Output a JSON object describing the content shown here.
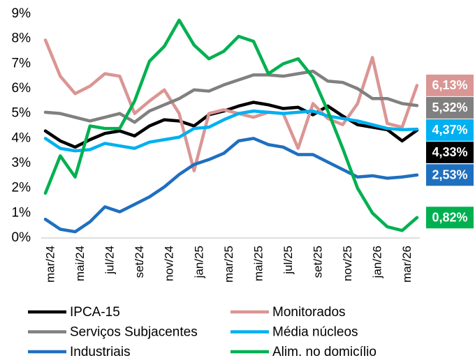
{
  "chart_data": {
    "type": "line",
    "categories": [
      "mar/24",
      null,
      "mai/24",
      null,
      "jul/24",
      null,
      "set/24",
      null,
      "nov/24",
      null,
      "jan/25",
      null,
      "mar/25",
      null,
      "mai/25",
      null,
      "jul/25",
      null,
      "set/25",
      null,
      "nov/25",
      null,
      "jan/26",
      null,
      "mar/26",
      null
    ],
    "series": [
      {
        "name": "IPCA-15",
        "color": "#000000",
        "end_label": "4,33%",
        "values": [
          4.3,
          3.9,
          3.65,
          3.95,
          4.2,
          4.3,
          4.1,
          4.5,
          4.75,
          4.7,
          4.5,
          4.95,
          5.1,
          5.3,
          5.45,
          5.35,
          5.2,
          5.25,
          4.95,
          5.3,
          4.9,
          4.55,
          4.45,
          4.35,
          3.9,
          4.33
        ]
      },
      {
        "name": "Monitorados",
        "color": "#da9694",
        "end_label": "6,13%",
        "values": [
          7.95,
          6.5,
          5.8,
          6.1,
          6.6,
          6.5,
          5.0,
          5.5,
          5.95,
          5.0,
          2.7,
          5.0,
          5.15,
          5.0,
          4.85,
          5.05,
          5.0,
          3.6,
          5.4,
          4.8,
          4.55,
          5.4,
          7.25,
          4.6,
          4.45,
          6.13
        ]
      },
      {
        "name": "Serviços Subjacentes",
        "color": "#808080",
        "end_label": "5,32%",
        "values": [
          5.05,
          5.0,
          4.85,
          4.7,
          4.85,
          5.0,
          4.65,
          5.1,
          5.35,
          5.6,
          5.95,
          5.9,
          6.15,
          6.35,
          6.55,
          6.55,
          6.5,
          6.6,
          6.7,
          6.3,
          6.25,
          6.0,
          5.6,
          5.6,
          5.4,
          5.32
        ]
      },
      {
        "name": "Média núcleos",
        "color": "#00b0f0",
        "end_label": "4,37%",
        "values": [
          4.0,
          3.6,
          3.5,
          3.55,
          3.8,
          3.7,
          3.6,
          3.85,
          3.95,
          4.05,
          4.4,
          4.45,
          4.75,
          5.0,
          5.1,
          5.05,
          5.0,
          5.05,
          5.1,
          4.9,
          4.8,
          4.7,
          4.55,
          4.4,
          4.35,
          4.37
        ]
      },
      {
        "name": "Industriais",
        "color": "#1f6fbf",
        "end_label": "2,53%",
        "values": [
          0.75,
          0.35,
          0.25,
          0.65,
          1.25,
          1.05,
          1.35,
          1.65,
          2.05,
          2.55,
          2.95,
          3.15,
          3.4,
          3.9,
          4.0,
          3.75,
          3.65,
          3.35,
          3.35,
          3.05,
          2.75,
          2.45,
          2.5,
          2.4,
          2.45,
          2.53
        ]
      },
      {
        "name": "Alim. no domicílio",
        "color": "#00b050",
        "end_label": "0,82%",
        "values": [
          1.8,
          3.3,
          2.45,
          4.5,
          4.4,
          4.4,
          5.5,
          7.1,
          7.7,
          8.75,
          7.75,
          7.2,
          7.5,
          8.1,
          7.9,
          6.6,
          7.0,
          7.2,
          6.45,
          5.1,
          3.6,
          2.0,
          1.0,
          0.45,
          0.3,
          0.82
        ]
      }
    ],
    "ylim": [
      0,
      9
    ],
    "yticks": [
      {
        "value": 0,
        "label": "0%"
      },
      {
        "value": 1,
        "label": "1%"
      },
      {
        "value": 2,
        "label": "2%"
      },
      {
        "value": 3,
        "label": "3%"
      },
      {
        "value": 4,
        "label": "4%"
      },
      {
        "value": 5,
        "label": "5%"
      },
      {
        "value": 6,
        "label": "6%"
      },
      {
        "value": 7,
        "label": "7%"
      },
      {
        "value": 8,
        "label": "8%"
      },
      {
        "value": 9,
        "label": "9%"
      }
    ],
    "grid": false
  }
}
